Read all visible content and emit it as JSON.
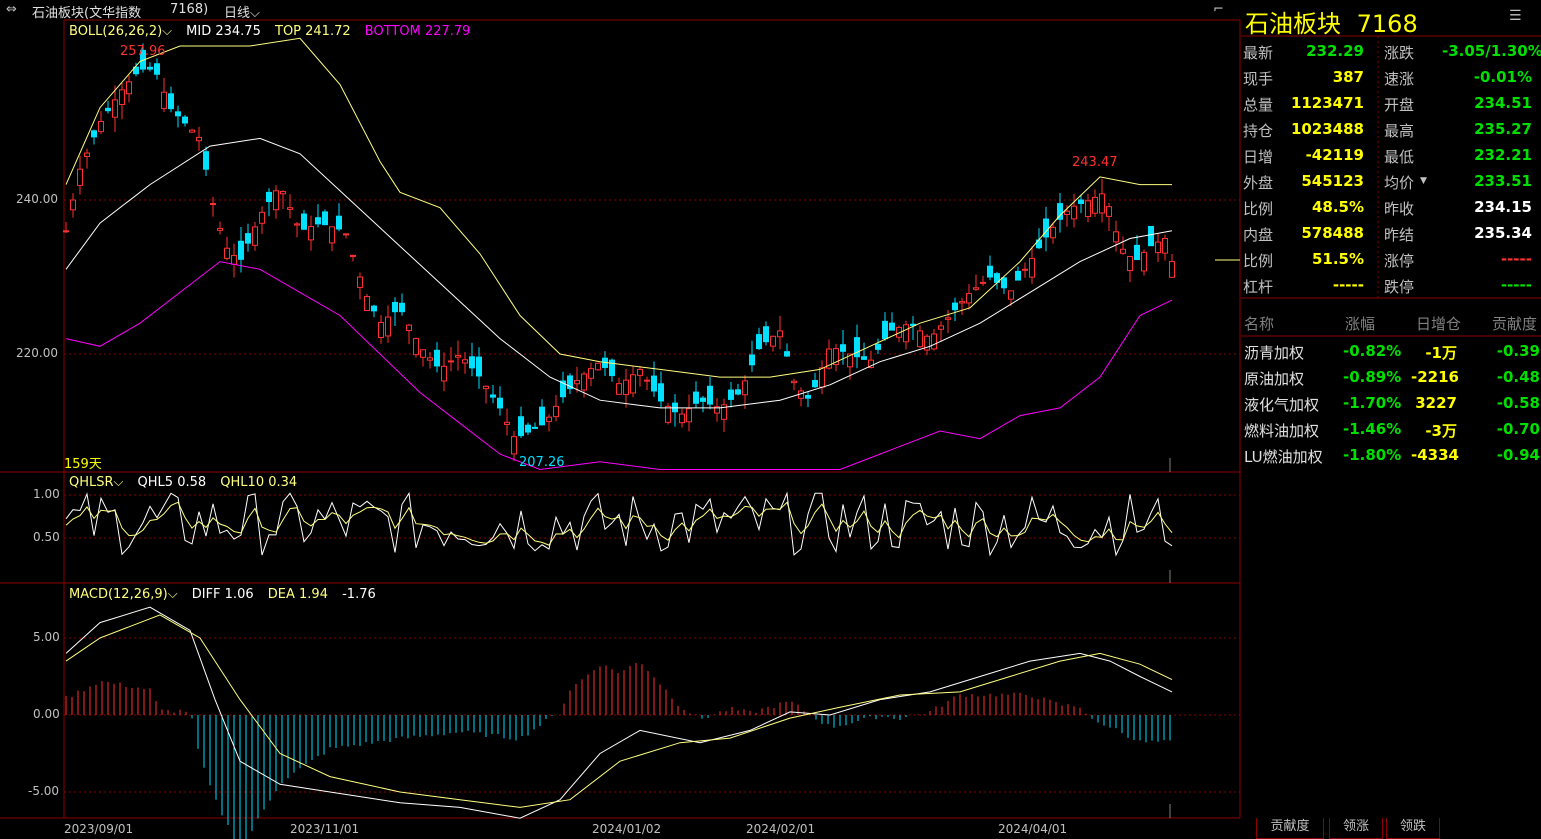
{
  "header": {
    "title": "石油板块(文华指数",
    "code": "7168)",
    "period": "日线"
  },
  "boll_legend": {
    "name": "BOLL(26,26,2)",
    "mid": "MID 234.75",
    "top": "TOP 241.72",
    "bottom": "BOTTOM 227.79"
  },
  "qhlsr_legend": {
    "name": "QHLSR",
    "qhl5": "QHL5 0.58",
    "qhl10": "QHL10 0.34"
  },
  "macd_legend": {
    "name": "MACD(12,26,9)",
    "diff": "DIFF 1.06",
    "dea": "DEA 1.94",
    "macd": "-1.76"
  },
  "annotations": {
    "high_label": "257.96",
    "recent_high_label": "243.47",
    "low_label": "207.26",
    "days_label": "159天"
  },
  "y_axis": {
    "main": [
      "240.00",
      "220.00"
    ],
    "qhlsr": [
      "1.00",
      "0.50"
    ],
    "macd": [
      "5.00",
      "0.00",
      "-5.00"
    ]
  },
  "x_axis": [
    "2023/09/01",
    "2023/11/01",
    "2024/01/02",
    "2024/02/01",
    "2024/04/01"
  ],
  "quote_panel": {
    "title": "石油板块",
    "code": "7168",
    "left": [
      {
        "label": "最新",
        "value": "232.29",
        "color": "#00e000"
      },
      {
        "label": "现手",
        "value": "387",
        "color": "#ffff00"
      },
      {
        "label": "总量",
        "value": "1123471",
        "color": "#ffff00"
      },
      {
        "label": "持仓",
        "value": "1023488",
        "color": "#ffff00"
      },
      {
        "label": "日增",
        "value": "-42119",
        "color": "#ffff00"
      },
      {
        "label": "外盘",
        "value": "545123",
        "color": "#ffff00"
      },
      {
        "label": "比例",
        "value": "48.5%",
        "color": "#ffff00"
      },
      {
        "label": "内盘",
        "value": "578488",
        "color": "#ffff00"
      },
      {
        "label": "比例",
        "value": "51.5%",
        "color": "#ffff00"
      },
      {
        "label": "杠杆",
        "value": "-----",
        "color": "#ffff00"
      }
    ],
    "right": [
      {
        "label": "涨跌",
        "value": "-3.05/1.30%",
        "color": "#00e000"
      },
      {
        "label": "速涨",
        "value": "-0.01%",
        "color": "#00e000"
      },
      {
        "label": "开盘",
        "value": "234.51",
        "color": "#00e000"
      },
      {
        "label": "最高",
        "value": "235.27",
        "color": "#00e000"
      },
      {
        "label": "最低",
        "value": "232.21",
        "color": "#00e000"
      },
      {
        "label": "均价",
        "value": "233.51",
        "color": "#00e000"
      },
      {
        "label": "昨收",
        "value": "234.15",
        "color": "#ffffff"
      },
      {
        "label": "昨结",
        "value": "235.34",
        "color": "#ffffff"
      },
      {
        "label": "涨停",
        "value": "-----",
        "color": "#ff3030"
      },
      {
        "label": "跌停",
        "value": "-----",
        "color": "#00e000"
      }
    ]
  },
  "sector_table": {
    "headers": [
      "名称",
      "涨幅",
      "日增仓",
      "贡献度"
    ],
    "rows": [
      {
        "name": "沥青加权",
        "change": "-0.82%",
        "oi": "-1万",
        "contrib": "-0.39"
      },
      {
        "name": "原油加权",
        "change": "-0.89%",
        "oi": "-2216",
        "contrib": "-0.48"
      },
      {
        "name": "液化气加权",
        "change": "-1.70%",
        "oi": "3227",
        "contrib": "-0.58"
      },
      {
        "name": "燃料油加权",
        "change": "-1.46%",
        "oi": "-3万",
        "contrib": "-0.70"
      },
      {
        "name": "LU燃油加权",
        "change": "-1.80%",
        "oi": "-4334",
        "contrib": "-0.94"
      }
    ]
  },
  "bottom_tabs": [
    "贡献度",
    "领涨",
    "领跌"
  ],
  "colors": {
    "up": "#ff3030",
    "down": "#00e0ff",
    "grid": "#8b0000",
    "axis_text": "#c0c0c0",
    "boll_top": "#ffff80",
    "boll_mid": "#ffffff",
    "boll_bottom": "#ff00ff"
  }
}
